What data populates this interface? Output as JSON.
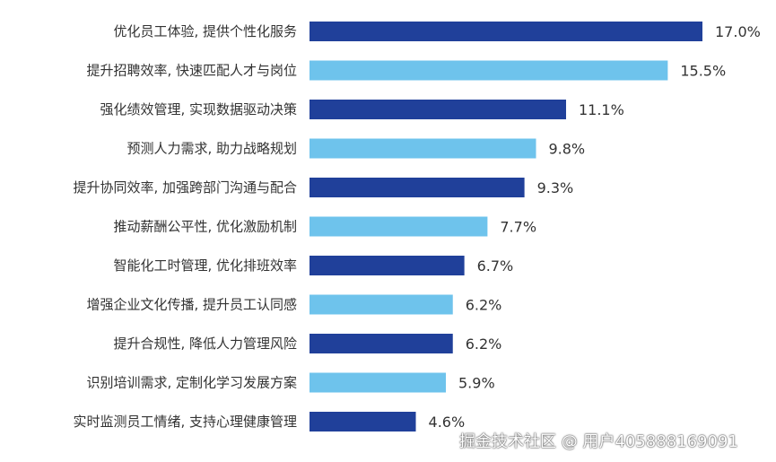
{
  "chart_data": {
    "type": "bar",
    "orientation": "horizontal",
    "title": "",
    "xlabel": "",
    "ylabel": "",
    "xlim": [
      0,
      17
    ],
    "grid": false,
    "categories": [
      "优化员工体验, 提供个性化服务",
      "提升招聘效率, 快速匹配人才与岗位",
      "强化绩效管理, 实现数据驱动决策",
      "预测人力需求, 助力战略规划",
      "提升协同效率, 加强跨部门沟通与配合",
      "推动薪酬公平性, 优化激励机制",
      "智能化工时管理, 优化排班效率",
      "增强企业文化传播, 提升员工认同感",
      "提升合规性, 降低人力管理风险",
      "识别培训需求, 定制化学习发展方案",
      "实时监测员工情绪, 支持心理健康管理"
    ],
    "values": [
      17.0,
      15.5,
      11.1,
      9.8,
      9.3,
      7.7,
      6.7,
      6.2,
      6.2,
      5.9,
      4.6
    ],
    "value_labels": [
      "17.0%",
      "15.5%",
      "11.1%",
      "9.8%",
      "9.3%",
      "7.7%",
      "6.7%",
      "6.2%",
      "6.2%",
      "5.9%",
      "4.6%"
    ],
    "colors": [
      "#20409a",
      "#6ec3ec"
    ]
  },
  "watermark": "掘金技术社区 @ 用户405888169091"
}
